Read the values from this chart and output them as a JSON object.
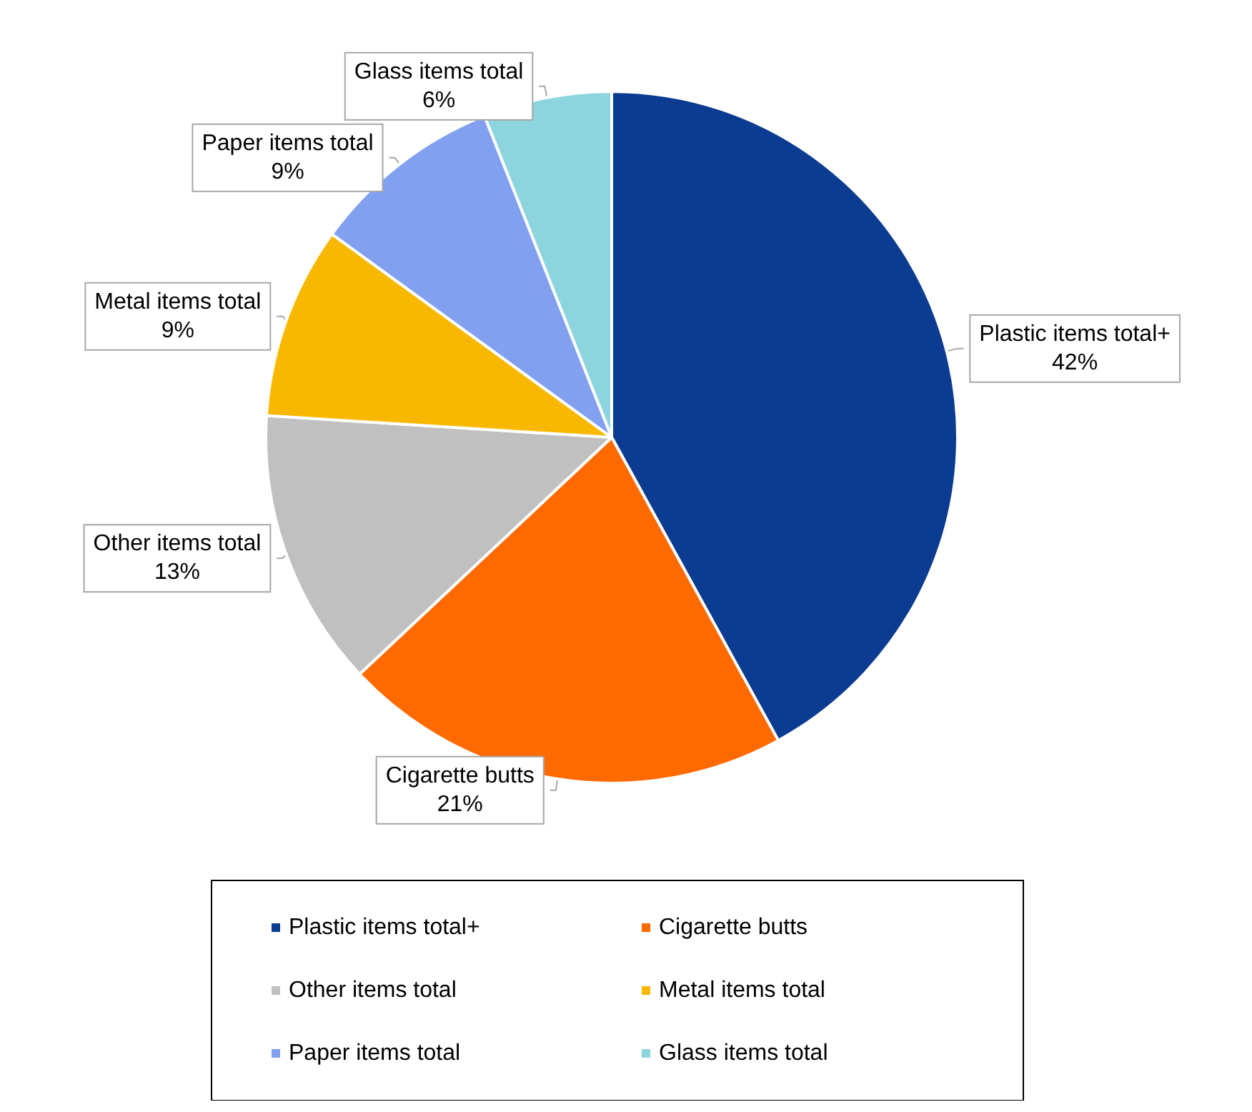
{
  "chart_data": {
    "type": "pie",
    "categories": [
      "Plastic items total+",
      "Cigarette butts",
      "Other items total",
      "Metal items total",
      "Paper items total",
      "Glass items total"
    ],
    "values": [
      42,
      21,
      13,
      9,
      9,
      6
    ],
    "value_labels": [
      "42%",
      "21%",
      "13%",
      "9%",
      "9%",
      "6%"
    ],
    "colors": [
      "#0c3c91",
      "#ff6a00",
      "#c0c0c0",
      "#f9b800",
      "#82a0f0",
      "#8dd5de"
    ],
    "legend": "bottom"
  }
}
